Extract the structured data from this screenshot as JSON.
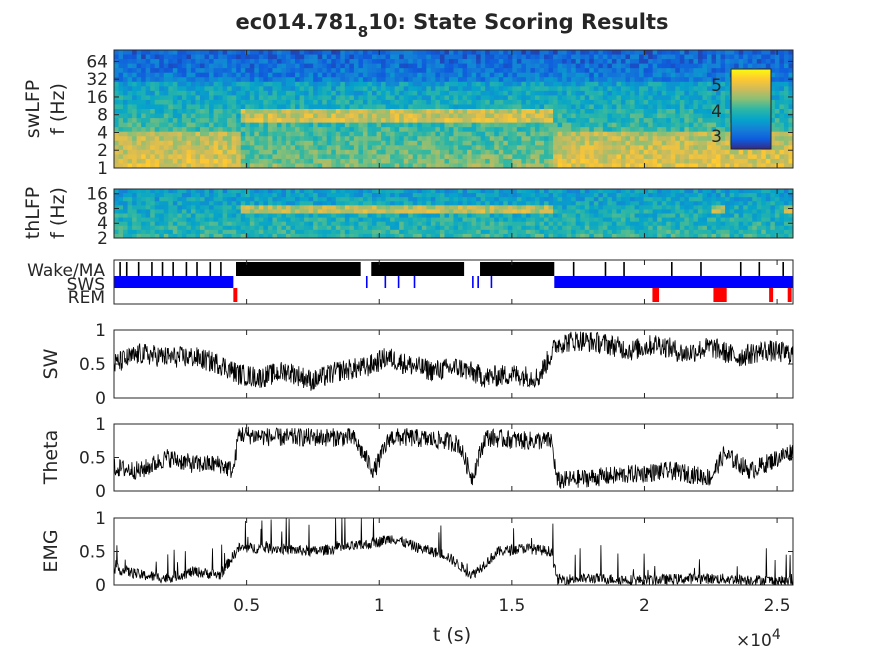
{
  "figure": {
    "title_main": "ec014.781",
    "title_sub": "8",
    "title_rest": "10: State Scoring Results",
    "xlabel": "t (s)",
    "x_exponent_base": "×10",
    "x_exponent_power": "4"
  },
  "chart_data": [
    {
      "type": "heatmap",
      "name": "swLFP spectrogram",
      "ylabel_1": "swLFP",
      "ylabel_2": "f (Hz)",
      "yscale": "log",
      "ylim": [
        1,
        100
      ],
      "yticks": [
        "1",
        "2",
        "4",
        "8",
        "16",
        "32",
        "64"
      ],
      "colorbar_ticks": [
        "5",
        "4",
        "3"
      ],
      "colorbar_range": [
        2.5,
        5.6
      ],
      "colormap": [
        "#352a87",
        "#0f5cdd",
        "#1481d6",
        "#06a4ca",
        "#2eb7a4",
        "#87bf77",
        "#d1bb59",
        "#fec832",
        "#f9fb0e"
      ],
      "theta_band_hz": [
        5.5,
        10
      ],
      "theta_band_bright_segments_s": [
        [
          4700,
          16600
        ]
      ]
    },
    {
      "type": "heatmap",
      "name": "thLFP spectrogram",
      "ylabel_1": "thLFP",
      "ylabel_2": "f (Hz)",
      "yscale": "log",
      "ylim": [
        2,
        20
      ],
      "yticks": [
        "2",
        "4",
        "8",
        "16"
      ],
      "theta_band_bright_segments_s": [
        [
          4700,
          16600
        ],
        [
          22500,
          23000
        ],
        [
          25300,
          25600
        ]
      ]
    },
    {
      "type": "line",
      "name": "state hypnogram",
      "states": [
        "Wake/MA",
        "SWS",
        "REM"
      ],
      "state_colors": [
        "#000000",
        "#0000ff",
        "#ff0000"
      ],
      "segments": [
        {
          "state": "SWS",
          "start": 0,
          "end": 4500
        },
        {
          "state": "Wake/MA",
          "start": 4600,
          "end": 9300
        },
        {
          "state": "Wake/MA",
          "start": 9700,
          "end": 13200
        },
        {
          "state": "Wake/MA",
          "start": 13800,
          "end": 16600
        },
        {
          "state": "SWS",
          "start": 16600,
          "end": 25600
        },
        {
          "state": "REM",
          "start": 4500,
          "end": 4650
        },
        {
          "state": "REM",
          "start": 20300,
          "end": 20550
        },
        {
          "state": "REM",
          "start": 22600,
          "end": 23100
        },
        {
          "state": "REM",
          "start": 24700,
          "end": 24850
        },
        {
          "state": "REM",
          "start": 25400,
          "end": 25550
        }
      ],
      "brief_wake_in_sws_s": [
        200,
        450,
        900,
        1400,
        1800,
        2200,
        2700,
        3100,
        3600,
        4000,
        17300,
        18500,
        19200,
        21000,
        22100,
        23600,
        24300,
        25200
      ],
      "brief_sws_in_wake_s": [
        9500,
        10200,
        10700,
        11300,
        13500,
        13700,
        14200
      ]
    },
    {
      "type": "line",
      "name": "SW",
      "ylabel": "SW",
      "ylim": [
        0,
        1
      ],
      "yticks": [
        "0",
        "0.5",
        "1"
      ],
      "x": [
        0,
        1000,
        2000,
        3000,
        4000,
        4700,
        5500,
        6500,
        7500,
        8500,
        9500,
        10300,
        11000,
        12000,
        13000,
        14000,
        15000,
        16000,
        16700,
        17500,
        18500,
        19500,
        20500,
        21500,
        22500,
        23500,
        24500,
        25600
      ],
      "y": [
        0.5,
        0.65,
        0.6,
        0.6,
        0.5,
        0.35,
        0.3,
        0.4,
        0.25,
        0.4,
        0.45,
        0.6,
        0.5,
        0.4,
        0.45,
        0.3,
        0.35,
        0.3,
        0.8,
        0.85,
        0.8,
        0.7,
        0.8,
        0.65,
        0.75,
        0.6,
        0.7,
        0.65
      ]
    },
    {
      "type": "line",
      "name": "Theta",
      "ylabel": "Theta",
      "ylim": [
        0,
        1
      ],
      "yticks": [
        "0",
        "0.5",
        "1"
      ],
      "x": [
        0,
        1000,
        2000,
        3000,
        4000,
        4500,
        4700,
        6000,
        7500,
        9000,
        9800,
        10400,
        11000,
        12500,
        13000,
        13500,
        14000,
        15500,
        16500,
        16700,
        18000,
        19500,
        21000,
        22500,
        23000,
        24000,
        25600
      ],
      "y": [
        0.35,
        0.3,
        0.5,
        0.4,
        0.4,
        0.3,
        0.85,
        0.8,
        0.8,
        0.8,
        0.3,
        0.8,
        0.8,
        0.75,
        0.7,
        0.2,
        0.8,
        0.75,
        0.75,
        0.15,
        0.2,
        0.25,
        0.3,
        0.2,
        0.55,
        0.3,
        0.6
      ]
    },
    {
      "type": "line",
      "name": "EMG",
      "ylabel": "EMG",
      "ylim": [
        0,
        1
      ],
      "yticks": [
        "0",
        "0.5",
        "1"
      ],
      "x": [
        0,
        1000,
        2000,
        3000,
        4000,
        4700,
        6000,
        7500,
        8500,
        9500,
        10500,
        11500,
        12500,
        13500,
        14500,
        15500,
        16500,
        16700,
        18000,
        20000,
        22000,
        24000,
        25600
      ],
      "y": [
        0.25,
        0.15,
        0.1,
        0.2,
        0.15,
        0.55,
        0.55,
        0.5,
        0.55,
        0.6,
        0.7,
        0.55,
        0.45,
        0.15,
        0.5,
        0.55,
        0.5,
        0.08,
        0.1,
        0.07,
        0.1,
        0.08,
        0.05
      ]
    }
  ],
  "xaxis": {
    "xlim": [
      0,
      25600
    ],
    "ticks": [
      {
        "value": 5000,
        "label": "0.5"
      },
      {
        "value": 10000,
        "label": "1"
      },
      {
        "value": 15000,
        "label": "1.5"
      },
      {
        "value": 20000,
        "label": "2"
      },
      {
        "value": 25000,
        "label": "2.5"
      }
    ]
  }
}
